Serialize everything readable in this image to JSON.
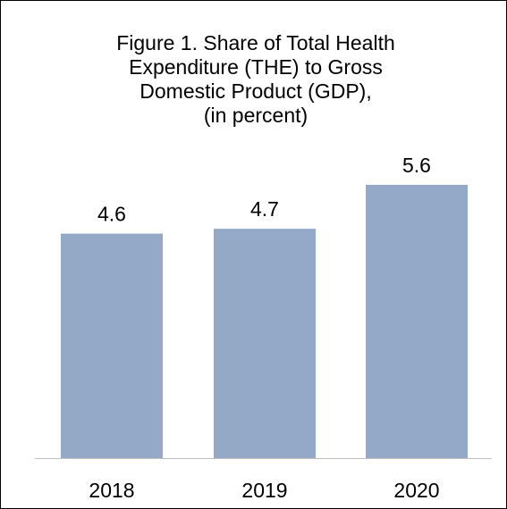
{
  "chart_data": {
    "type": "bar",
    "title_lines": [
      "Figure 1. Share of Total Health",
      "Expenditure (THE) to Gross",
      "Domestic Product (GDP),",
      "(in percent)"
    ],
    "categories": [
      "2018",
      "2019",
      "2020"
    ],
    "values": [
      4.6,
      4.7,
      5.6
    ],
    "data_labels": [
      "4.6",
      "4.7",
      "5.6"
    ],
    "xlabel": "",
    "ylabel": "",
    "ylim": [
      0,
      5.6
    ],
    "grid": false,
    "legend": "none",
    "bar_color": "#94A8C8",
    "axis_color": "#BFBFBF"
  }
}
